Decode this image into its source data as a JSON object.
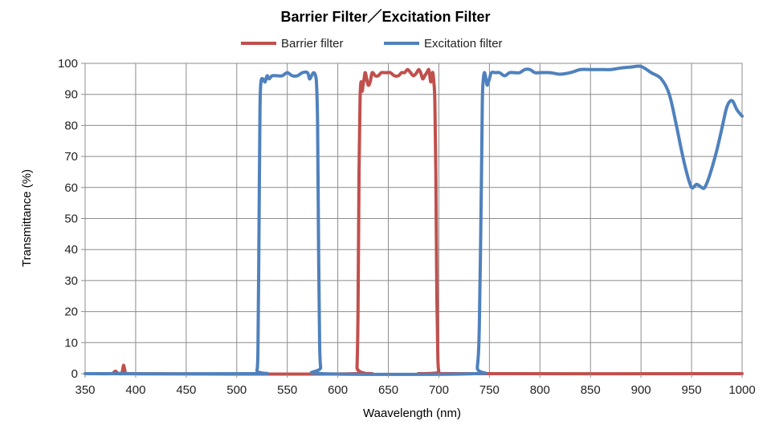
{
  "chart_data": {
    "type": "line",
    "title": "Barrier Filter／Excitation Filter",
    "xlabel": "Waavelength (nm)",
    "ylabel": "Transmittance (%)",
    "xlim": [
      350,
      1000
    ],
    "ylim": [
      0,
      100
    ],
    "x_ticks": [
      350,
      400,
      450,
      500,
      550,
      600,
      650,
      700,
      750,
      800,
      850,
      900,
      950,
      1000
    ],
    "y_ticks": [
      0,
      10,
      20,
      30,
      40,
      50,
      60,
      70,
      80,
      90,
      100
    ],
    "grid": true,
    "legend_position": "top",
    "series": [
      {
        "name": "Barrier filter",
        "color": "#c0504d",
        "points": [
          [
            350,
            0
          ],
          [
            376,
            0
          ],
          [
            378,
            0.3
          ],
          [
            380,
            0.8
          ],
          [
            382,
            0.2
          ],
          [
            384,
            0
          ],
          [
            386,
            0
          ],
          [
            387,
            1.0
          ],
          [
            388,
            2.7
          ],
          [
            389,
            1.5
          ],
          [
            390,
            0.2
          ],
          [
            392,
            0
          ],
          [
            618,
            0
          ],
          [
            619,
            2
          ],
          [
            620,
            20
          ],
          [
            621,
            65
          ],
          [
            622,
            88
          ],
          [
            623,
            94
          ],
          [
            624,
            91
          ],
          [
            625,
            93
          ],
          [
            626,
            95
          ],
          [
            627,
            97
          ],
          [
            628,
            96
          ],
          [
            630,
            93
          ],
          [
            632,
            94
          ],
          [
            634,
            97
          ],
          [
            637,
            96
          ],
          [
            640,
            96
          ],
          [
            643,
            97
          ],
          [
            646,
            97
          ],
          [
            649,
            97
          ],
          [
            652,
            97
          ],
          [
            656,
            96
          ],
          [
            660,
            96
          ],
          [
            663,
            97
          ],
          [
            666,
            97
          ],
          [
            669,
            98
          ],
          [
            672,
            97
          ],
          [
            675,
            96
          ],
          [
            678,
            97
          ],
          [
            680,
            98
          ],
          [
            682,
            97
          ],
          [
            684,
            95
          ],
          [
            686,
            96
          ],
          [
            688,
            97
          ],
          [
            690,
            98
          ],
          [
            691,
            96
          ],
          [
            692,
            94
          ],
          [
            693,
            96
          ],
          [
            694,
            97
          ],
          [
            695,
            94
          ],
          [
            696,
            88
          ],
          [
            697,
            65
          ],
          [
            698,
            25
          ],
          [
            699,
            5
          ],
          [
            700,
            0.5
          ],
          [
            701,
            0
          ],
          [
            1000,
            0
          ]
        ]
      },
      {
        "name": "Excitation filter",
        "color": "#4f81bd",
        "points": [
          [
            350,
            0
          ],
          [
            518,
            0
          ],
          [
            520,
            1
          ],
          [
            521,
            8
          ],
          [
            522,
            45
          ],
          [
            523,
            85
          ],
          [
            524,
            94
          ],
          [
            526,
            95
          ],
          [
            528,
            94
          ],
          [
            530,
            96
          ],
          [
            532,
            95
          ],
          [
            535,
            96
          ],
          [
            540,
            96
          ],
          [
            545,
            96
          ],
          [
            550,
            97
          ],
          [
            555,
            96
          ],
          [
            560,
            96
          ],
          [
            565,
            97
          ],
          [
            570,
            97
          ],
          [
            572,
            95
          ],
          [
            574,
            96
          ],
          [
            576,
            97
          ],
          [
            578,
            96
          ],
          [
            579,
            93
          ],
          [
            580,
            80
          ],
          [
            581,
            40
          ],
          [
            582,
            10
          ],
          [
            583,
            2
          ],
          [
            585,
            0
          ],
          [
            735,
            0
          ],
          [
            738,
            2
          ],
          [
            740,
            15
          ],
          [
            742,
            60
          ],
          [
            743,
            88
          ],
          [
            744,
            95
          ],
          [
            745,
            97
          ],
          [
            746,
            96
          ],
          [
            747,
            94
          ],
          [
            748,
            93
          ],
          [
            750,
            95
          ],
          [
            752,
            97
          ],
          [
            756,
            97
          ],
          [
            760,
            97
          ],
          [
            765,
            96
          ],
          [
            770,
            97
          ],
          [
            775,
            97
          ],
          [
            780,
            97
          ],
          [
            785,
            98
          ],
          [
            790,
            98
          ],
          [
            795,
            97
          ],
          [
            800,
            97
          ],
          [
            810,
            97
          ],
          [
            820,
            96.5
          ],
          [
            830,
            97
          ],
          [
            840,
            98
          ],
          [
            850,
            98
          ],
          [
            860,
            98
          ],
          [
            870,
            98
          ],
          [
            880,
            98.5
          ],
          [
            890,
            98.8
          ],
          [
            900,
            99
          ],
          [
            910,
            97
          ],
          [
            920,
            95
          ],
          [
            928,
            90
          ],
          [
            935,
            80
          ],
          [
            940,
            72
          ],
          [
            945,
            65
          ],
          [
            950,
            60
          ],
          [
            955,
            61
          ],
          [
            960,
            60
          ],
          [
            963,
            60
          ],
          [
            968,
            64
          ],
          [
            975,
            72
          ],
          [
            980,
            79
          ],
          [
            985,
            86
          ],
          [
            990,
            88
          ],
          [
            995,
            85
          ],
          [
            1000,
            83
          ]
        ]
      }
    ]
  }
}
